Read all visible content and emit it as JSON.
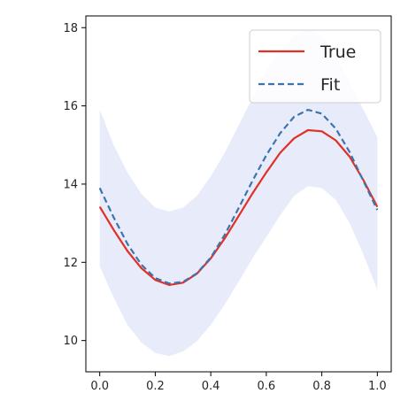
{
  "chart_data": {
    "type": "line",
    "xlim": [
      -0.05,
      1.05
    ],
    "ylim": [
      9.2,
      18.3
    ],
    "x_ticks": [
      0.0,
      0.2,
      0.4,
      0.6,
      0.8,
      1.0
    ],
    "x_tick_labels": [
      "0.0",
      "0.2",
      "0.4",
      "0.6",
      "0.8",
      "1.0"
    ],
    "y_ticks": [
      10,
      12,
      14,
      16,
      18
    ],
    "y_tick_labels": [
      "10",
      "12",
      "14",
      "16",
      "18"
    ],
    "grid": false,
    "legend": "top-right",
    "series": [
      {
        "name": "True",
        "style": "solid",
        "color": "#e03127",
        "x": [
          0.0,
          0.05,
          0.1,
          0.15,
          0.2,
          0.25,
          0.3,
          0.35,
          0.4,
          0.45,
          0.5,
          0.55,
          0.6,
          0.65,
          0.7,
          0.75,
          0.8,
          0.85,
          0.9,
          0.95,
          1.0
        ],
        "y": [
          13.42,
          12.83,
          12.29,
          11.85,
          11.55,
          11.42,
          11.48,
          11.71,
          12.1,
          12.61,
          13.18,
          13.76,
          14.3,
          14.8,
          15.17,
          15.38,
          15.35,
          15.12,
          14.7,
          14.1,
          13.42
        ]
      },
      {
        "name": "Fit",
        "style": "dashed",
        "color": "#3b75af",
        "x": [
          0.0,
          0.05,
          0.1,
          0.15,
          0.2,
          0.25,
          0.3,
          0.35,
          0.4,
          0.45,
          0.5,
          0.55,
          0.6,
          0.65,
          0.7,
          0.75,
          0.8,
          0.85,
          0.9,
          0.95,
          1.0
        ],
        "y": [
          13.9,
          13.15,
          12.47,
          11.94,
          11.6,
          11.46,
          11.5,
          11.72,
          12.12,
          12.7,
          13.38,
          14.08,
          14.74,
          15.3,
          15.72,
          15.9,
          15.8,
          15.42,
          14.82,
          14.08,
          13.34
        ]
      }
    ],
    "band": {
      "color": "#e8ebfa",
      "x": [
        0.0,
        0.05,
        0.1,
        0.15,
        0.2,
        0.25,
        0.3,
        0.35,
        0.4,
        0.45,
        0.5,
        0.55,
        0.6,
        0.65,
        0.7,
        0.75,
        0.8,
        0.85,
        0.9,
        0.95,
        1.0
      ],
      "lower": [
        11.9,
        11.1,
        10.4,
        9.95,
        9.68,
        9.6,
        9.72,
        9.98,
        10.4,
        10.92,
        11.5,
        12.1,
        12.65,
        13.2,
        13.7,
        13.95,
        13.9,
        13.6,
        13.0,
        12.2,
        11.3
      ],
      "upper": [
        15.9,
        15.0,
        14.3,
        13.75,
        13.4,
        13.3,
        13.4,
        13.7,
        14.2,
        14.8,
        15.5,
        16.2,
        16.9,
        17.4,
        17.8,
        17.95,
        17.8,
        17.3,
        16.6,
        15.9,
        15.2
      ]
    }
  }
}
